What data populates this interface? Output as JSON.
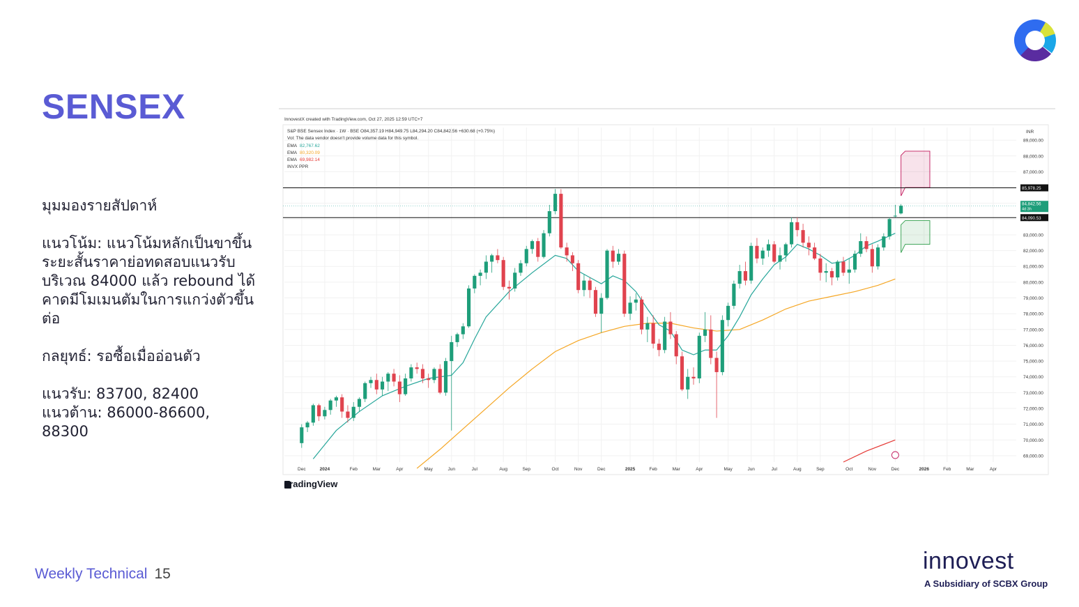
{
  "slide": {
    "title": "SENSEX",
    "commentary": [
      "มุมมองรายสัปดาห์",
      "แนวโน้ม: แนวโน้มหลักเป็นขาขึ้น\nระยะสั้นราคาย่อทดสอบแนวรับ\nบริเวณ 84000 แล้ว rebound ได้\nคาดมีโมเมนตัมในการแกว่งตัวขึ้น\nต่อ",
      "กลยุทธ์: รอซื้อเมื่ออ่อนตัว",
      "แนวรับ: 83700, 82400\nแนวต้าน: 86000-86600,\n88300"
    ],
    "footer_label": "Weekly Technical",
    "page_number": "15",
    "brand_name": "innovest",
    "brand_sub": "A Subsidiary of SCBX Group",
    "colors": {
      "accent": "#5a5bd4",
      "brand_dark": "#1e1e55"
    }
  },
  "chart_data": {
    "type": "candlestick",
    "header_line": "InnovestX created with TradingView.com, Oct 27, 2025 12:59 UTC+7",
    "symbol_line": "S&P BSE Sensex Index · 1W · BSE  O84,357.19  H84,949.75  L84,294.20  C84,842.56  +630.68 (+0.75%)",
    "vol_note": "Vol: The data vendor doesn't provide volume data for this symbol.",
    "indicators": [
      {
        "label": "EMA",
        "value": "82,767.62",
        "color": "#26a69a"
      },
      {
        "label": "EMA",
        "value": "80,320.09",
        "color": "#f5a623"
      },
      {
        "label": "EMA",
        "value": "69,982.14",
        "color": "#e53935"
      },
      {
        "label": "INVX PPR",
        "value": "",
        "color": "#555555"
      }
    ],
    "currency": "INR",
    "watermark": "TradingView",
    "ylim": [
      68600,
      89800
    ],
    "y_ticks": [
      69000,
      70000,
      71000,
      72000,
      73000,
      74000,
      75000,
      76000,
      77000,
      78000,
      79000,
      80000,
      81000,
      82000,
      83000,
      84000,
      85000,
      86000,
      87000,
      88000,
      89000
    ],
    "y_tick_labels": [
      "69,000.00",
      "70,000.00",
      "71,000.00",
      "72,000.00",
      "73,000.00",
      "74,000.00",
      "75,000.00",
      "76,000.00",
      "77,000.00",
      "78,000.00",
      "79,000.00",
      "80,000.00",
      "81,000.00",
      "82,000.00",
      "83,000.00",
      "84,000.00",
      "85,000.00",
      "86,000.00",
      "87,000.00",
      "88,000.00",
      "89,000.00"
    ],
    "x_labels": [
      {
        "week": 0,
        "text": "Dec"
      },
      {
        "week": 4,
        "text": "2024"
      },
      {
        "week": 9,
        "text": "Feb"
      },
      {
        "week": 13,
        "text": "Mar"
      },
      {
        "week": 17,
        "text": "Apr"
      },
      {
        "week": 22,
        "text": "May"
      },
      {
        "week": 26,
        "text": "Jun"
      },
      {
        "week": 30,
        "text": "Jul"
      },
      {
        "week": 35,
        "text": "Aug"
      },
      {
        "week": 39,
        "text": "Sep"
      },
      {
        "week": 44,
        "text": "Oct"
      },
      {
        "week": 48,
        "text": "Nov"
      },
      {
        "week": 52,
        "text": "Dec"
      },
      {
        "week": 57,
        "text": "2025"
      },
      {
        "week": 61,
        "text": "Feb"
      },
      {
        "week": 65,
        "text": "Mar"
      },
      {
        "week": 69,
        "text": "Apr"
      },
      {
        "week": 74,
        "text": "May"
      },
      {
        "week": 78,
        "text": "Jun"
      },
      {
        "week": 82,
        "text": "Jul"
      },
      {
        "week": 86,
        "text": "Aug"
      },
      {
        "week": 90,
        "text": "Sep"
      },
      {
        "week": 95,
        "text": "Oct"
      },
      {
        "week": 99,
        "text": "Nov"
      },
      {
        "week": 103,
        "text": "Dec"
      },
      {
        "week": 108,
        "text": "2026"
      },
      {
        "week": 112,
        "text": "Feb"
      },
      {
        "week": 116,
        "text": "Mar"
      },
      {
        "week": 120,
        "text": "Apr"
      }
    ],
    "x_range_weeks": [
      -3,
      124
    ],
    "candles": [
      [
        69800,
        71000,
        69500,
        70800
      ],
      [
        70800,
        71200,
        70500,
        71100
      ],
      [
        71100,
        72300,
        70900,
        72200
      ],
      [
        72200,
        72300,
        71200,
        71500
      ],
      [
        71500,
        72100,
        71300,
        71900
      ],
      [
        71900,
        72600,
        71600,
        72500
      ],
      [
        72500,
        72800,
        72100,
        72700
      ],
      [
        72700,
        72900,
        71400,
        71800
      ],
      [
        71800,
        72200,
        71100,
        71400
      ],
      [
        71400,
        72400,
        71200,
        72100
      ],
      [
        72100,
        72700,
        71800,
        72600
      ],
      [
        72600,
        73700,
        72400,
        73600
      ],
      [
        73600,
        74000,
        73300,
        73800
      ],
      [
        73800,
        74200,
        72900,
        73200
      ],
      [
        73200,
        74000,
        72800,
        73700
      ],
      [
        73700,
        74300,
        73100,
        74200
      ],
      [
        74200,
        74500,
        73400,
        73700
      ],
      [
        73700,
        74100,
        72400,
        72900
      ],
      [
        72900,
        74200,
        72800,
        73900
      ],
      [
        73900,
        74800,
        73700,
        74600
      ],
      [
        74600,
        74900,
        74200,
        74500
      ],
      [
        74500,
        74800,
        73600,
        73900
      ],
      [
        73900,
        74200,
        73300,
        73800
      ],
      [
        73800,
        74600,
        73600,
        74500
      ],
      [
        74500,
        74800,
        72900,
        73000
      ],
      [
        73000,
        75200,
        72800,
        75000
      ],
      [
        75000,
        76600,
        70600,
        76200
      ],
      [
        76200,
        76800,
        75900,
        76700
      ],
      [
        76700,
        77400,
        76400,
        77200
      ],
      [
        77200,
        79800,
        77100,
        79600
      ],
      [
        79600,
        80500,
        79300,
        80400
      ],
      [
        80400,
        80800,
        79800,
        80600
      ],
      [
        80600,
        81700,
        80200,
        81300
      ],
      [
        81300,
        81800,
        80600,
        81700
      ],
      [
        81700,
        82100,
        81200,
        81400
      ],
      [
        81400,
        81600,
        79500,
        79700
      ],
      [
        79700,
        80100,
        78900,
        79600
      ],
      [
        79600,
        80900,
        79400,
        80600
      ],
      [
        80600,
        81400,
        80400,
        81200
      ],
      [
        81200,
        82300,
        81000,
        82100
      ],
      [
        82100,
        82700,
        81800,
        82600
      ],
      [
        82600,
        82800,
        81300,
        81600
      ],
      [
        81600,
        83300,
        81500,
        83100
      ],
      [
        83100,
        84900,
        82900,
        84500
      ],
      [
        84500,
        85900,
        84300,
        85600
      ],
      [
        85600,
        85900,
        82100,
        82200
      ],
      [
        82200,
        82500,
        81300,
        81700
      ],
      [
        81700,
        81900,
        80700,
        81200
      ],
      [
        81200,
        81400,
        79300,
        79500
      ],
      [
        79500,
        80500,
        79100,
        80100
      ],
      [
        80100,
        80300,
        79000,
        79500
      ],
      [
        79500,
        79700,
        77800,
        78000
      ],
      [
        78000,
        79300,
        76800,
        79000
      ],
      [
        79000,
        82100,
        78900,
        82000
      ],
      [
        82000,
        82300,
        80900,
        81300
      ],
      [
        81300,
        82100,
        81100,
        81800
      ],
      [
        81800,
        82000,
        77800,
        78000
      ],
      [
        78000,
        79100,
        77600,
        78700
      ],
      [
        78700,
        79300,
        78200,
        78900
      ],
      [
        78900,
        79100,
        76700,
        77000
      ],
      [
        77000,
        77800,
        76200,
        77400
      ],
      [
        77400,
        77900,
        75800,
        76100
      ],
      [
        76100,
        76400,
        75300,
        75700
      ],
      [
        75700,
        77800,
        75500,
        77500
      ],
      [
        77500,
        78100,
        76400,
        76700
      ],
      [
        76700,
        76900,
        74800,
        75300
      ],
      [
        75300,
        75600,
        73100,
        73200
      ],
      [
        73200,
        74500,
        72600,
        74000
      ],
      [
        74000,
        74600,
        73500,
        73900
      ],
      [
        73900,
        76800,
        73600,
        76600
      ],
      [
        76600,
        78100,
        76200,
        77000
      ],
      [
        77000,
        77900,
        74800,
        75200
      ],
      [
        75200,
        75600,
        71400,
        74300
      ],
      [
        74300,
        77900,
        74100,
        77600
      ],
      [
        77600,
        78700,
        77200,
        78500
      ],
      [
        78500,
        80100,
        78300,
        79900
      ],
      [
        79900,
        81100,
        79600,
        80700
      ],
      [
        80700,
        81300,
        79800,
        80100
      ],
      [
        80100,
        82500,
        79900,
        82300
      ],
      [
        82300,
        82800,
        81200,
        81500
      ],
      [
        81500,
        82200,
        81100,
        82000
      ],
      [
        82000,
        82700,
        81600,
        82400
      ],
      [
        82400,
        82600,
        81200,
        81300
      ],
      [
        81300,
        82200,
        80800,
        81700
      ],
      [
        81700,
        82500,
        81300,
        82400
      ],
      [
        82400,
        84100,
        82200,
        83800
      ],
      [
        83800,
        84100,
        82900,
        83300
      ],
      [
        83300,
        83700,
        82200,
        82500
      ],
      [
        82500,
        82900,
        81700,
        82200
      ],
      [
        82200,
        82500,
        81400,
        81500
      ],
      [
        81500,
        81800,
        80100,
        80600
      ],
      [
        80600,
        81200,
        80000,
        80700
      ],
      [
        80700,
        80900,
        79800,
        80300
      ],
      [
        80300,
        81400,
        80100,
        81300
      ],
      [
        81300,
        81600,
        80400,
        80600
      ],
      [
        80600,
        81500,
        79900,
        80800
      ],
      [
        80800,
        82000,
        80600,
        81800
      ],
      [
        81800,
        83100,
        81600,
        82600
      ],
      [
        82600,
        82900,
        81900,
        82100
      ],
      [
        82100,
        82400,
        80600,
        81000
      ],
      [
        81000,
        82400,
        80800,
        82200
      ],
      [
        82200,
        83100,
        82000,
        82900
      ],
      [
        82900,
        84100,
        82700,
        84000
      ],
      [
        84200,
        84900,
        84100,
        84212
      ],
      [
        84357,
        84950,
        84294,
        84843
      ]
    ],
    "ema_short": [
      [
        2,
        68800
      ],
      [
        6,
        70600
      ],
      [
        10,
        71800
      ],
      [
        14,
        72800
      ],
      [
        18,
        73400
      ],
      [
        22,
        73900
      ],
      [
        26,
        74100
      ],
      [
        28,
        74900
      ],
      [
        30,
        76400
      ],
      [
        32,
        77800
      ],
      [
        36,
        79400
      ],
      [
        40,
        80600
      ],
      [
        44,
        81700
      ],
      [
        46,
        81500
      ],
      [
        48,
        80700
      ],
      [
        50,
        80300
      ],
      [
        52,
        79900
      ],
      [
        54,
        80400
      ],
      [
        56,
        80100
      ],
      [
        58,
        79400
      ],
      [
        60,
        78300
      ],
      [
        62,
        77300
      ],
      [
        64,
        76900
      ],
      [
        66,
        75700
      ],
      [
        68,
        75400
      ],
      [
        70,
        75700
      ],
      [
        72,
        75700
      ],
      [
        74,
        76600
      ],
      [
        76,
        77800
      ],
      [
        78,
        79200
      ],
      [
        80,
        80200
      ],
      [
        82,
        81100
      ],
      [
        84,
        81600
      ],
      [
        86,
        82400
      ],
      [
        88,
        82100
      ],
      [
        90,
        81700
      ],
      [
        92,
        81200
      ],
      [
        94,
        81300
      ],
      [
        96,
        81700
      ],
      [
        98,
        82300
      ],
      [
        100,
        82600
      ],
      [
        103,
        83100
      ]
    ],
    "ema_long": [
      [
        20,
        68200
      ],
      [
        24,
        69400
      ],
      [
        28,
        70700
      ],
      [
        32,
        72000
      ],
      [
        36,
        73300
      ],
      [
        40,
        74500
      ],
      [
        44,
        75600
      ],
      [
        48,
        76300
      ],
      [
        52,
        76800
      ],
      [
        56,
        77200
      ],
      [
        60,
        77400
      ],
      [
        64,
        77400
      ],
      [
        68,
        77100
      ],
      [
        72,
        76900
      ],
      [
        76,
        77000
      ],
      [
        80,
        77600
      ],
      [
        84,
        78300
      ],
      [
        88,
        78800
      ],
      [
        92,
        79100
      ],
      [
        96,
        79400
      ],
      [
        100,
        79800
      ],
      [
        103,
        80200
      ]
    ],
    "ema_longest": [
      [
        94,
        68600
      ],
      [
        98,
        69300
      ],
      [
        103,
        70000
      ]
    ],
    "horizontal_lines": [
      {
        "price": 85978.25,
        "label": "85,978.25"
      },
      {
        "price": 84090.53,
        "label": "84,090.53"
      }
    ],
    "price_labels": [
      {
        "price": 84842.56,
        "label": "84,842.56",
        "sub": "4d 3h"
      }
    ],
    "projection_boxes": [
      {
        "type": "resistance",
        "from_week": 104,
        "to_week": 109,
        "top": 88300,
        "bottom": 86000,
        "color": "#c2185b"
      },
      {
        "type": "support",
        "from_week": 104,
        "to_week": 109,
        "top": 83900,
        "bottom": 82400,
        "color": "#2e9e4a"
      }
    ],
    "candle_colors": {
      "up": "#1e9e7a",
      "down": "#e0434e"
    },
    "grid": true
  }
}
